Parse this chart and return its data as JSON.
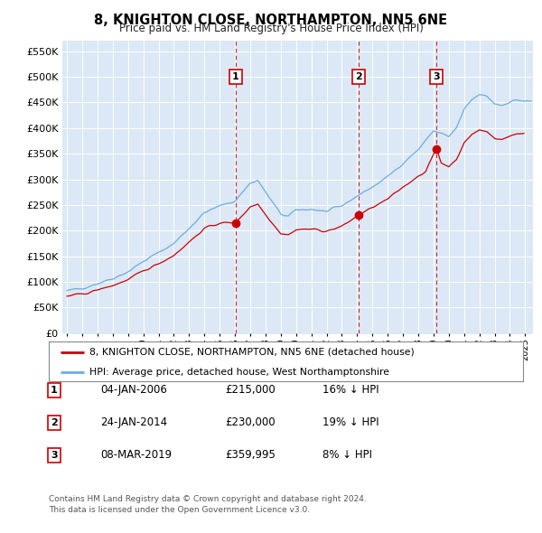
{
  "title": "8, KNIGHTON CLOSE, NORTHAMPTON, NN5 6NE",
  "subtitle": "Price paid vs. HM Land Registry's House Price Index (HPI)",
  "plot_bg_color": "#dce8f5",
  "hpi_color": "#6aaee0",
  "sale_color": "#cc0000",
  "vline_color": "#cc0000",
  "transactions": [
    {
      "date_num": 2006.04,
      "price": 215000,
      "label": "1"
    },
    {
      "date_num": 2014.07,
      "price": 230000,
      "label": "2"
    },
    {
      "date_num": 2019.19,
      "price": 359995,
      "label": "3"
    }
  ],
  "legend_line1": "8, KNIGHTON CLOSE, NORTHAMPTON, NN5 6NE (detached house)",
  "legend_line2": "HPI: Average price, detached house, West Northamptonshire",
  "table_rows": [
    {
      "num": "1",
      "date": "04-JAN-2006",
      "price": "£215,000",
      "hpi": "16% ↓ HPI"
    },
    {
      "num": "2",
      "date": "24-JAN-2014",
      "price": "£230,000",
      "hpi": "19% ↓ HPI"
    },
    {
      "num": "3",
      "date": "08-MAR-2019",
      "price": "£359,995",
      "hpi": "8% ↓ HPI"
    }
  ],
  "footer": "Contains HM Land Registry data © Crown copyright and database right 2024.\nThis data is licensed under the Open Government Licence v3.0.",
  "xlim_start": 1994.7,
  "xlim_end": 2025.5,
  "ylim_min": 0,
  "ylim_max": 570000,
  "ytick_values": [
    0,
    50000,
    100000,
    150000,
    200000,
    250000,
    300000,
    350000,
    400000,
    450000,
    500000,
    550000
  ]
}
